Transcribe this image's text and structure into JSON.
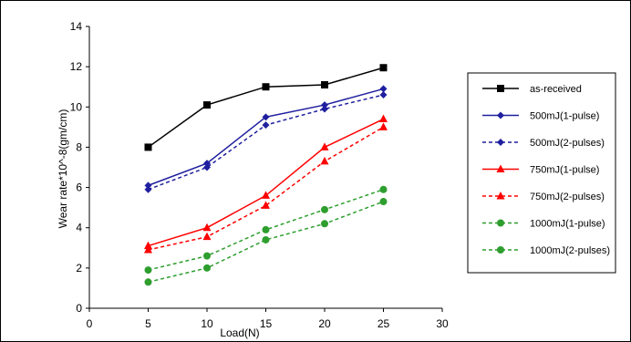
{
  "chart_data": {
    "type": "line",
    "xlabel": "Load(N)",
    "ylabel": "Wear rate*10^-8(gm/cm)",
    "xlim": [
      0,
      30
    ],
    "ylim": [
      0,
      14
    ],
    "x_ticks": [
      0,
      5,
      10,
      15,
      20,
      25,
      30
    ],
    "y_ticks": [
      0,
      2,
      4,
      6,
      8,
      10,
      12,
      14
    ],
    "grid": false,
    "legend_position": "right",
    "x": [
      5,
      10,
      15,
      20,
      25
    ],
    "series": [
      {
        "name": "as-received",
        "color": "#000000",
        "marker": "square",
        "dash": "solid",
        "values": [
          8.0,
          10.1,
          11.0,
          11.1,
          11.95
        ]
      },
      {
        "name": "500mJ(1-pulse)",
        "color": "#1f1f9f",
        "marker": "diamond",
        "dash": "solid",
        "values": [
          6.1,
          7.2,
          9.5,
          10.1,
          10.9
        ]
      },
      {
        "name": "500mJ(2-pulses)",
        "color": "#1f1f9f",
        "marker": "diamond",
        "dash": "dashed",
        "values": [
          5.9,
          7.0,
          9.1,
          9.9,
          10.6
        ]
      },
      {
        "name": "750mJ(1-pulse)",
        "color": "#ff0000",
        "marker": "triangle",
        "dash": "solid",
        "values": [
          3.1,
          4.0,
          5.6,
          8.0,
          9.4
        ]
      },
      {
        "name": "750mJ(2-pulses)",
        "color": "#ff0000",
        "marker": "triangle",
        "dash": "dashed",
        "values": [
          2.9,
          3.55,
          5.1,
          7.3,
          9.0
        ]
      },
      {
        "name": "1000mJ(1-pulse)",
        "color": "#2e9e2e",
        "marker": "circle",
        "dash": "dashed",
        "values": [
          1.9,
          2.6,
          3.9,
          4.9,
          5.9
        ]
      },
      {
        "name": "1000mJ(2-pulses)",
        "color": "#2e9e2e",
        "marker": "circle",
        "dash": "dashed",
        "values": [
          1.3,
          2.0,
          3.4,
          4.2,
          5.3
        ]
      }
    ]
  }
}
